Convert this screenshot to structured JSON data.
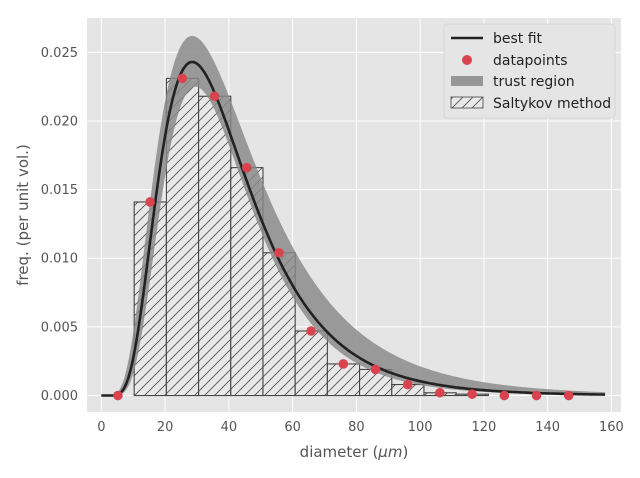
{
  "chart_data": {
    "type": "bar",
    "xlabel": "diameter (",
    "xlabel_unit": "μm",
    "xlabel_end": ")",
    "ylabel": "freq. (per unit vol.)",
    "xlim": [
      -4.5,
      163
    ],
    "ylim": [
      -0.0012,
      0.0275
    ],
    "xticks": [
      0,
      20,
      40,
      60,
      80,
      100,
      120,
      140,
      160
    ],
    "yticks": [
      0.0,
      0.005,
      0.01,
      0.015,
      0.02,
      0.025
    ],
    "ytick_labels": [
      "0.000",
      "0.005",
      "0.010",
      "0.015",
      "0.020",
      "0.025"
    ],
    "grid": true,
    "legend_position": "top-right",
    "legend": [
      {
        "label": "best fit",
        "kind": "line"
      },
      {
        "label": "datapoints",
        "kind": "marker"
      },
      {
        "label": "trust region",
        "kind": "band"
      },
      {
        "label": "Saltykov method",
        "kind": "hatch"
      }
    ],
    "histogram": {
      "name": "Saltykov method",
      "bin_edges": [
        10.3,
        20.4,
        30.5,
        40.6,
        50.7,
        60.8,
        70.9,
        81.0,
        91.1,
        101.2,
        111.3,
        121.4
      ],
      "values": [
        0.0141,
        0.0231,
        0.0218,
        0.0166,
        0.0104,
        0.0047,
        0.0023,
        0.0019,
        0.0008,
        0.0002,
        0.0001
      ]
    },
    "datapoints": {
      "name": "datapoints",
      "x": [
        5.2,
        15.3,
        25.4,
        35.5,
        45.6,
        55.7,
        65.8,
        75.9,
        86.0,
        96.1,
        106.2,
        116.3,
        126.4,
        136.5,
        146.6
      ],
      "y": [
        0.0,
        0.0141,
        0.0231,
        0.0218,
        0.0166,
        0.0104,
        0.0047,
        0.0023,
        0.0019,
        0.0008,
        0.0002,
        0.0001,
        0.0,
        0.0,
        0.0
      ]
    },
    "best_fit": {
      "name": "best fit",
      "distribution": "lognormal",
      "scale": 0.0243,
      "peak_x": 28.5,
      "sigma": 0.5,
      "x_range": [
        0,
        158
      ]
    },
    "trust_region": {
      "name": "trust region",
      "upper_scale": 0.0262,
      "upper_peak_x": 28.5,
      "upper_sigma": 0.56,
      "lower_scale": 0.0225,
      "lower_peak_x": 29.5,
      "lower_sigma": 0.47
    },
    "colors": {
      "panel": "#e5e5e5",
      "grid": "#ffffff",
      "fit_line": "#222222",
      "marker": "#d9434f",
      "band": "#888888",
      "bar_fill": "#e8e8e8",
      "bar_edge": "#444444"
    }
  }
}
